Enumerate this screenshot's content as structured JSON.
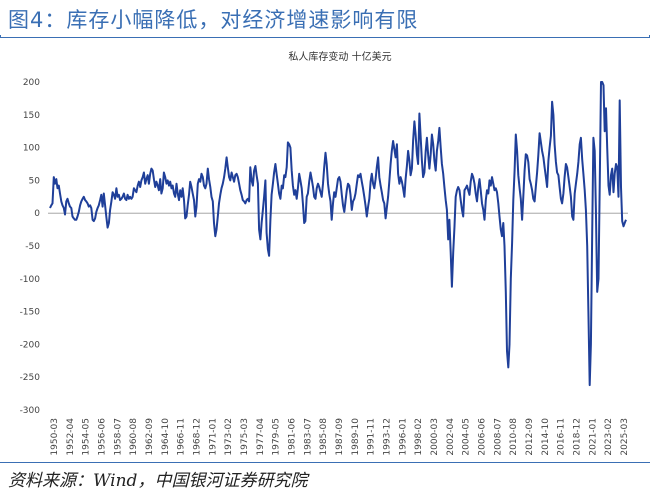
{
  "figure": {
    "title": "图4：库存小幅降低，对经济增速影响有限",
    "source": "资料来源：Wind，中国银河证券研究院"
  },
  "colors": {
    "title": "#3a6fb4",
    "line": "#1f3f99",
    "axis": "#999999"
  },
  "chart_data": {
    "type": "line",
    "title": "私人库存变动 十亿美元",
    "xlabel": "",
    "ylabel": "",
    "ylim": [
      -300,
      200
    ],
    "yticks": [
      200,
      150,
      100,
      50,
      0,
      -50,
      -100,
      -150,
      -200,
      -250,
      -300
    ],
    "xticks": [
      "1950-03",
      "1952-04",
      "1954-05",
      "1956-06",
      "1958-07",
      "1960-08",
      "1962-09",
      "1964-10",
      "1966-11",
      "1968-12",
      "1971-01",
      "1973-02",
      "1975-03",
      "1977-04",
      "1979-05",
      "1981-06",
      "1983-07",
      "1985-08",
      "1987-09",
      "1989-10",
      "1991-11",
      "1993-12",
      "1996-01",
      "1998-02",
      "2000-03",
      "2002-04",
      "2004-05",
      "2006-06",
      "2008-07",
      "2010-08",
      "2012-09",
      "2014-10",
      "2016-11",
      "2018-12",
      "2021-01",
      "2023-02",
      "2025-03"
    ],
    "x_start": "1950-Q1",
    "frequency": "quarterly",
    "series": [
      {
        "name": "私人库存变动",
        "values": [
          8,
          12,
          15,
          55,
          45,
          52,
          38,
          42,
          30,
          18,
          12,
          8,
          -2,
          18,
          22,
          15,
          10,
          8,
          -5,
          -8,
          -10,
          -10,
          -5,
          2,
          12,
          18,
          22,
          25,
          20,
          18,
          15,
          10,
          12,
          8,
          -10,
          -12,
          -8,
          2,
          8,
          12,
          20,
          28,
          10,
          30,
          12,
          -5,
          -22,
          -15,
          5,
          18,
          32,
          28,
          22,
          38,
          25,
          28,
          20,
          22,
          25,
          30,
          22,
          20,
          28,
          22,
          25,
          22,
          25,
          38,
          35,
          32,
          42,
          48,
          40,
          50,
          55,
          62,
          45,
          52,
          58,
          45,
          60,
          68,
          65,
          52,
          40,
          48,
          42,
          35,
          52,
          30,
          38,
          62,
          55,
          45,
          50,
          42,
          48,
          38,
          42,
          30,
          25,
          45,
          30,
          20,
          35,
          25,
          38,
          20,
          -8,
          -5,
          12,
          28,
          48,
          40,
          30,
          20,
          -5,
          10,
          45,
          52,
          48,
          60,
          55,
          42,
          38,
          45,
          68,
          52,
          40,
          25,
          18,
          -15,
          -35,
          -25,
          -5,
          15,
          28,
          38,
          45,
          55,
          68,
          85,
          70,
          55,
          50,
          62,
          55,
          48,
          58,
          60,
          55,
          45,
          35,
          28,
          20,
          18,
          15,
          20,
          22,
          18,
          70,
          50,
          42,
          65,
          72,
          58,
          45,
          -25,
          -40,
          -15,
          5,
          25,
          50,
          -30,
          -55,
          -65,
          -10,
          28,
          45,
          62,
          75,
          60,
          45,
          30,
          22,
          42,
          38,
          58,
          55,
          70,
          108,
          105,
          100,
          65,
          42,
          28,
          35,
          22,
          38,
          60,
          50,
          38,
          15,
          -15,
          -12,
          25,
          30,
          48,
          62,
          52,
          40,
          25,
          22,
          38,
          45,
          40,
          32,
          25,
          45,
          70,
          92,
          75,
          45,
          30,
          18,
          -10,
          15,
          32,
          25,
          38,
          52,
          55,
          48,
          28,
          12,
          2,
          18,
          35,
          45,
          42,
          28,
          5,
          18,
          22,
          30,
          45,
          58,
          55,
          60,
          48,
          38,
          25,
          12,
          -5,
          10,
          22,
          48,
          60,
          45,
          38,
          52,
          70,
          85,
          55,
          42,
          32,
          20,
          15,
          -8,
          8,
          25,
          48,
          75,
          95,
          110,
          98,
          85,
          105,
          60,
          45,
          55,
          48,
          38,
          25,
          52,
          72,
          95,
          80,
          58,
          68,
          110,
          140,
          120,
          90,
          75,
          152,
          118,
          80,
          55,
          62,
          95,
          115,
          88,
          68,
          90,
          120,
          105,
          80,
          65,
          95,
          110,
          130,
          100,
          75,
          60,
          40,
          20,
          5,
          -40,
          -10,
          -60,
          -112,
          -60,
          -20,
          25,
          35,
          40,
          35,
          20,
          5,
          -5,
          35,
          38,
          42,
          35,
          28,
          48,
          60,
          55,
          45,
          30,
          18,
          38,
          52,
          35,
          15,
          5,
          -10,
          20,
          35,
          30,
          50,
          42,
          55,
          45,
          35,
          38,
          32,
          15,
          -5,
          -25,
          -35,
          -15,
          -50,
          -120,
          -210,
          -235,
          -200,
          -100,
          -45,
          20,
          65,
          120,
          95,
          58,
          38,
          22,
          -10,
          25,
          65,
          90,
          88,
          78,
          52,
          45,
          35,
          22,
          18,
          40,
          62,
          88,
          122,
          108,
          95,
          85,
          70,
          55,
          40,
          80,
          100,
          118,
          170,
          150,
          105,
          78,
          62,
          58,
          40,
          22,
          15,
          30,
          55,
          75,
          70,
          55,
          40,
          25,
          -5,
          -10,
          30,
          45,
          60,
          78,
          105,
          115,
          82,
          60,
          35,
          5,
          -50,
          -150,
          -262,
          -200,
          -30,
          115,
          95,
          5,
          -120,
          -100,
          40,
          200,
          240,
          195,
          125,
          160,
          100,
          42,
          28,
          58,
          68,
          32,
          60,
          75,
          70,
          25,
          172,
          40,
          -12,
          -20,
          -15,
          -10
        ]
      }
    ]
  }
}
